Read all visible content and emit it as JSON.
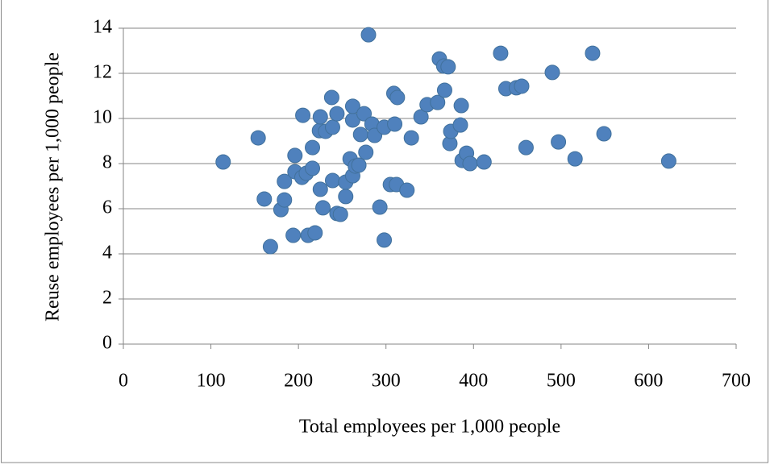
{
  "chart_data": {
    "type": "scatter",
    "x_label": "Total employees per 1,000 people",
    "y_label": "Reuse employees  per 1,000 people",
    "color": "#4f81bd",
    "x": [
      114,
      154,
      161,
      168,
      180,
      184,
      184,
      194,
      196,
      196,
      204,
      205,
      209,
      211,
      216,
      216,
      219,
      224,
      225,
      225,
      228,
      231,
      238,
      239,
      239,
      244,
      244,
      248,
      254,
      254,
      259,
      262,
      262,
      262,
      265,
      269,
      271,
      275,
      277,
      280,
      284,
      287,
      293,
      298,
      298,
      305,
      309,
      310,
      313,
      312,
      324,
      329,
      340,
      347,
      359,
      361,
      366,
      367,
      371,
      373,
      374,
      385,
      386,
      387,
      392,
      396,
      412,
      431,
      437,
      449,
      455,
      460,
      490,
      497,
      516,
      536,
      549,
      623
    ],
    "values": [
      8.07,
      9.14,
      6.43,
      4.32,
      5.96,
      6.39,
      7.21,
      4.82,
      8.36,
      7.64,
      7.39,
      10.14,
      7.57,
      4.82,
      8.71,
      7.79,
      4.93,
      9.46,
      10.07,
      6.86,
      6.04,
      9.43,
      10.93,
      7.25,
      9.61,
      10.21,
      5.79,
      5.75,
      6.54,
      7.18,
      8.21,
      7.46,
      9.93,
      10.54,
      7.89,
      7.93,
      9.29,
      10.21,
      8.5,
      13.71,
      9.75,
      9.25,
      6.07,
      9.61,
      4.61,
      7.07,
      11.11,
      9.75,
      10.93,
      7.07,
      6.82,
      9.14,
      10.07,
      10.61,
      10.71,
      12.64,
      12.32,
      11.25,
      12.29,
      8.89,
      9.43,
      9.71,
      10.57,
      8.14,
      8.46,
      8.0,
      8.07,
      12.89,
      11.32,
      11.36,
      11.43,
      8.71,
      12.04,
      8.96,
      8.21,
      12.89,
      9.32,
      8.11
    ],
    "xlim": [
      0,
      700
    ],
    "xticks": [
      0,
      100,
      200,
      300,
      400,
      500,
      600,
      700
    ],
    "ylim": [
      0,
      14
    ],
    "yticks": [
      0,
      2,
      4,
      6,
      8,
      10,
      12,
      14
    ],
    "grid": true
  }
}
